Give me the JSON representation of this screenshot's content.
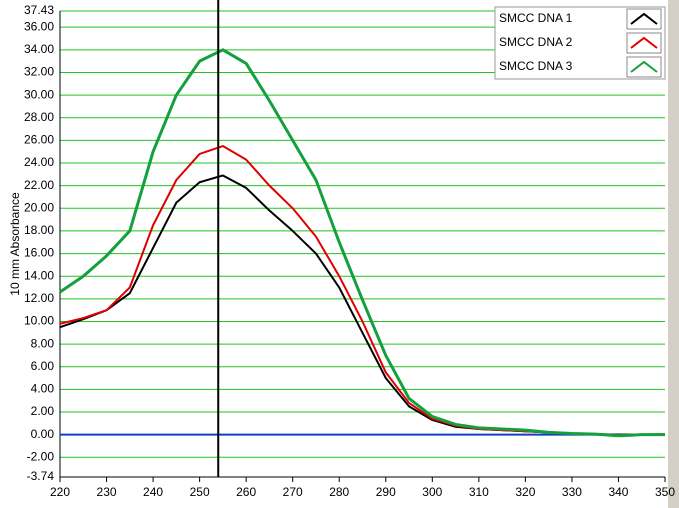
{
  "chart_data": {
    "type": "line",
    "y_label": "10 mm Absorbance",
    "x": [
      220,
      225,
      230,
      235,
      240,
      245,
      250,
      255,
      260,
      265,
      270,
      275,
      280,
      285,
      290,
      295,
      300,
      305,
      310,
      315,
      320,
      325,
      330,
      335,
      340,
      345,
      350
    ],
    "series": [
      {
        "name": "SMCC DNA 1",
        "color": "#000000",
        "values": [
          9.5,
          10.2,
          11.0,
          12.5,
          16.5,
          20.5,
          22.3,
          22.9,
          21.8,
          19.8,
          18.0,
          16.0,
          13.0,
          9.0,
          5.0,
          2.5,
          1.3,
          0.7,
          0.5,
          0.4,
          0.3,
          0.2,
          0.1,
          0.05,
          0.0,
          0.0,
          0.0
        ]
      },
      {
        "name": "SMCC DNA 2",
        "color": "#e00000",
        "values": [
          9.8,
          10.3,
          11.0,
          13.0,
          18.5,
          22.5,
          24.8,
          25.5,
          24.3,
          22.0,
          20.0,
          17.5,
          14.0,
          10.0,
          5.5,
          2.8,
          1.4,
          0.8,
          0.5,
          0.4,
          0.3,
          0.2,
          0.1,
          0.05,
          -0.05,
          0.0,
          0.05
        ]
      },
      {
        "name": "SMCC DNA 3",
        "color": "#14a03c",
        "values": [
          12.6,
          14.0,
          15.8,
          18.0,
          25.0,
          30.0,
          33.0,
          34.0,
          32.8,
          29.5,
          26.0,
          22.5,
          17.0,
          11.9,
          7.0,
          3.2,
          1.6,
          0.9,
          0.6,
          0.5,
          0.4,
          0.2,
          0.1,
          0.05,
          -0.1,
          0.0,
          0.0
        ]
      }
    ],
    "xlim": [
      220,
      350
    ],
    "xticks": [
      220,
      230,
      240,
      250,
      260,
      270,
      280,
      290,
      300,
      310,
      320,
      330,
      340,
      350
    ],
    "ylim": [
      -3.74,
      37.43
    ],
    "yticks": [
      {
        "value": -3.74,
        "label": "-3.74"
      },
      {
        "value": -2,
        "label": "-2.00"
      },
      {
        "value": 0,
        "label": "0.00"
      },
      {
        "value": 2,
        "label": "2.00"
      },
      {
        "value": 4,
        "label": "4.00"
      },
      {
        "value": 6,
        "label": "6.00"
      },
      {
        "value": 8,
        "label": "8.00"
      },
      {
        "value": 10,
        "label": "10.00"
      },
      {
        "value": 12,
        "label": "12.00"
      },
      {
        "value": 14,
        "label": "14.00"
      },
      {
        "value": 16,
        "label": "16.00"
      },
      {
        "value": 18,
        "label": "18.00"
      },
      {
        "value": 20,
        "label": "20.00"
      },
      {
        "value": 22,
        "label": "22.00"
      },
      {
        "value": 24,
        "label": "24.00"
      },
      {
        "value": 26,
        "label": "26.00"
      },
      {
        "value": 28,
        "label": "28.00"
      },
      {
        "value": 30,
        "label": "30.00"
      },
      {
        "value": 32,
        "label": "32.00"
      },
      {
        "value": 34,
        "label": "34.00"
      },
      {
        "value": 36,
        "label": "36.00"
      },
      {
        "value": 37.43,
        "label": "37.43"
      }
    ],
    "grid": true,
    "grid_color": "#22c322",
    "zero_line_color": "#1040c0",
    "marker_x": 254,
    "legend": "upper right"
  }
}
